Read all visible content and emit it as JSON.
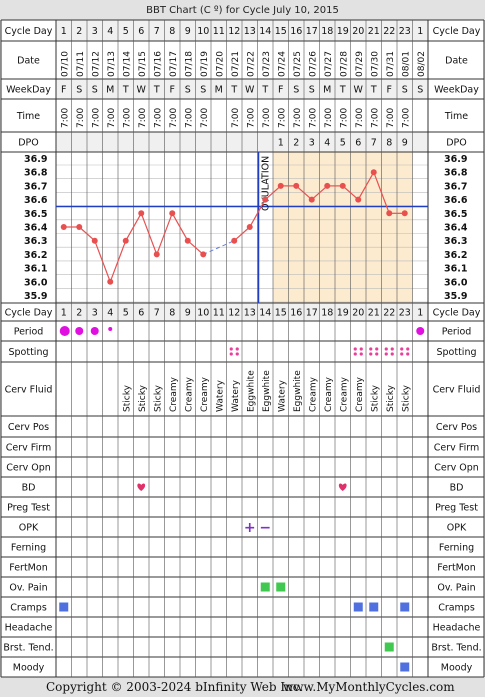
{
  "title": "BBT Chart (C º) for Cycle July 10, 2015",
  "row_labels": {
    "cycle_day": "Cycle Day",
    "date": "Date",
    "weekday": "WeekDay",
    "time": "Time",
    "dpo": "DPO",
    "period": "Period",
    "spotting": "Spotting",
    "cerv_fluid": "Cerv Fluid",
    "cerv_pos": "Cerv Pos",
    "cerv_firm": "Cerv Firm",
    "cerv_opn": "Cerv Opn",
    "bd": "BD",
    "preg_test": "Preg Test",
    "opk": "OPK",
    "ferning": "Ferning",
    "fertmon": "FertMon",
    "ov_pain": "Ov. Pain",
    "cramps": "Cramps",
    "headache": "Headache",
    "brst_tend": "Brst. Tend.",
    "moody": "Moody"
  },
  "ovulation_label": "OVULATION",
  "footer": {
    "copyright": "Copyright © 2003-2024 bInfinity Web Inc.",
    "site": "www.MyMonthlyCycles.com"
  },
  "colors": {
    "grid": "#333333",
    "chart_bg": "#ffffff",
    "luteal_bg": "#fdebcf",
    "line": "#e85050",
    "coverline": "#1f3ec0",
    "period": "#e010e0",
    "spotting": "#e8409a",
    "heart": "#e0306a",
    "opk": "#8030c8",
    "ov_pain": "#40c850",
    "cramps": "#5070e0",
    "brst_tend": "#40c850",
    "moody": "#5070e0"
  },
  "chart_data": {
    "type": "line",
    "title": "BBT Chart (C º) for Cycle July 10, 2015",
    "x": [
      "1",
      "2",
      "3",
      "4",
      "5",
      "6",
      "7",
      "8",
      "9",
      "10",
      "11",
      "12",
      "13",
      "14",
      "15",
      "16",
      "17",
      "18",
      "19",
      "20",
      "21",
      "22",
      "23",
      "1"
    ],
    "dates": [
      "07/10",
      "07/11",
      "07/12",
      "07/13",
      "07/14",
      "07/15",
      "07/16",
      "07/17",
      "07/18",
      "07/19",
      "07/20",
      "07/21",
      "07/22",
      "07/23",
      "07/24",
      "07/25",
      "07/26",
      "07/27",
      "07/28",
      "07/29",
      "07/30",
      "07/31",
      "08/01",
      "08/02"
    ],
    "weekdays": [
      "F",
      "S",
      "S",
      "M",
      "T",
      "W",
      "T",
      "F",
      "S",
      "S",
      "M",
      "T",
      "W",
      "T",
      "F",
      "S",
      "S",
      "M",
      "T",
      "W",
      "T",
      "F",
      "S",
      "S"
    ],
    "times": [
      "7:00",
      "7:00",
      "7:00",
      "7:00",
      "7:00",
      "7:00",
      "7:00",
      "7:00",
      "7:00",
      "7:00",
      "",
      "7:00",
      "7:00",
      "7:00",
      "7:00",
      "7:00",
      "7:00",
      "7:00",
      "7:00",
      "7:00",
      "7:00",
      "7:00",
      "7:00",
      ""
    ],
    "dpo": [
      "",
      "",
      "",
      "",
      "",
      "",
      "",
      "",
      "",
      "",
      "",
      "",
      "",
      "",
      "1",
      "2",
      "3",
      "4",
      "5",
      "6",
      "7",
      "8",
      "9",
      ""
    ],
    "series": [
      {
        "values": [
          36.4,
          36.4,
          36.3,
          36.0,
          36.3,
          36.5,
          36.2,
          36.5,
          36.3,
          36.2,
          null,
          36.3,
          36.4,
          36.6,
          36.7,
          36.7,
          36.6,
          36.7,
          36.7,
          36.6,
          36.8,
          36.5,
          36.5,
          null
        ]
      }
    ],
    "y_ticks": [
      "36.9",
      "36.8",
      "36.7",
      "36.6",
      "36.5",
      "36.4",
      "36.3",
      "36.2",
      "36.1",
      "36.0",
      "35.9"
    ],
    "ylim": [
      35.9,
      36.9
    ],
    "coverline": 36.55,
    "ovulation_day_index": 13,
    "grid": true,
    "period": [
      "large",
      "medium",
      "medium",
      "small",
      "",
      "",
      "",
      "",
      "",
      "",
      "",
      "",
      "",
      "",
      "",
      "",
      "",
      "",
      "",
      "",
      "",
      "",
      "",
      "medium"
    ],
    "spotting_days": [
      12,
      20,
      21,
      22,
      23
    ],
    "cerv_fluid": [
      "",
      "",
      "",
      "",
      "Sticky",
      "Sticky",
      "Sticky",
      "Creamy",
      "Creamy",
      "Creamy",
      "Watery",
      "Watery",
      "Eggwhite",
      "Eggwhite",
      "Watery",
      "Eggwhite",
      "Creamy",
      "Creamy",
      "Creamy",
      "Creamy",
      "Sticky",
      "Sticky",
      "Sticky",
      ""
    ],
    "bd_days": [
      6,
      19
    ],
    "opk": {
      "13": "+",
      "14": "−"
    },
    "ov_pain_days": [
      14,
      15
    ],
    "cramps_days": [
      1,
      20,
      21,
      23
    ],
    "brst_tend_days": [
      22
    ],
    "moody_days": [
      23
    ]
  }
}
